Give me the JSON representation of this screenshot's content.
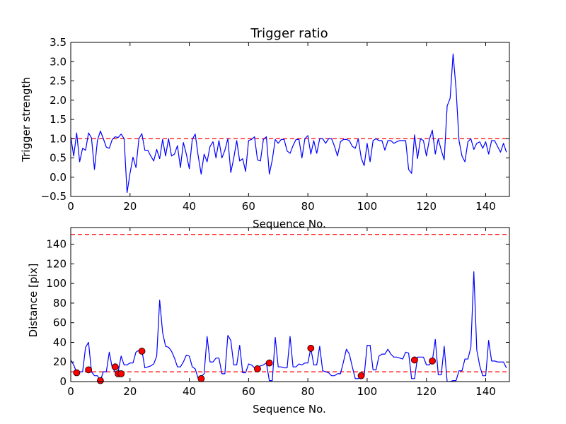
{
  "chart_data": [
    {
      "type": "line",
      "title": "Trigger ratio",
      "xlabel": "Sequence No.",
      "ylabel": "Trigger strength",
      "xlim": [
        0,
        148
      ],
      "ylim": [
        -0.5,
        3.5
      ],
      "xticks": [
        0,
        20,
        40,
        60,
        80,
        100,
        120,
        140
      ],
      "yticks": [
        -0.5,
        0.0,
        0.5,
        1.0,
        1.5,
        2.0,
        2.5,
        3.0,
        3.5
      ],
      "ytick_labels": [
        "−0.5",
        "0.0",
        "0.5",
        "1.0",
        "1.5",
        "2.0",
        "2.5",
        "3.0",
        "3.5"
      ],
      "grid": false,
      "series": [
        {
          "color": "#0000ff",
          "values": [
            1.05,
            0.55,
            1.15,
            0.4,
            0.75,
            0.7,
            1.15,
            1.02,
            0.2,
            0.95,
            1.2,
            1.0,
            0.78,
            0.75,
            0.98,
            1.05,
            1.03,
            1.12,
            1.0,
            -0.4,
            0.1,
            0.52,
            0.25,
            1.0,
            1.13,
            0.7,
            0.7,
            0.55,
            0.42,
            0.72,
            0.48,
            0.98,
            0.55,
            1.0,
            0.55,
            0.6,
            0.82,
            0.25,
            0.9,
            0.6,
            0.22,
            0.98,
            1.12,
            0.55,
            0.08,
            0.6,
            0.4,
            0.8,
            0.92,
            0.5,
            0.95,
            0.5,
            0.7,
            1.0,
            0.12,
            0.5,
            0.95,
            0.42,
            0.48,
            0.15,
            0.95,
            0.98,
            1.05,
            0.45,
            0.42,
            0.98,
            1.05,
            0.08,
            0.45,
            0.98,
            0.88,
            0.98,
            0.98,
            0.68,
            0.62,
            0.82,
            0.98,
            0.98,
            0.5,
            1.0,
            1.08,
            0.6,
            0.95,
            0.62,
            1.0,
            1.0,
            0.88,
            1.0,
            1.0,
            0.8,
            0.55,
            0.92,
            0.98,
            0.98,
            0.95,
            0.8,
            0.75,
            1.0,
            0.5,
            0.3,
            0.88,
            0.4,
            0.95,
            1.0,
            0.95,
            0.95,
            0.7,
            0.95,
            0.95,
            0.88,
            0.92,
            0.95,
            0.95,
            0.95,
            0.2,
            0.1,
            1.1,
            0.48,
            1.0,
            0.95,
            0.55,
            0.98,
            1.22,
            0.6,
            1.0,
            0.7,
            0.45,
            1.85,
            2.05,
            3.2,
            2.3,
            0.95,
            0.55,
            0.4,
            0.92,
            1.0,
            0.72,
            0.88,
            0.92,
            0.75,
            0.92,
            0.6,
            0.95,
            0.95,
            0.8,
            0.65,
            0.88,
            0.65
          ]
        }
      ],
      "threshold_lines": [
        {
          "y": 1.0,
          "color": "#ff0000",
          "style": "dashed"
        }
      ]
    },
    {
      "type": "line",
      "xlabel": "Sequence No.",
      "ylabel": "Distance [pix]",
      "xlim": [
        0,
        148
      ],
      "ylim": [
        0,
        157
      ],
      "xticks": [
        0,
        20,
        40,
        60,
        80,
        100,
        120,
        140
      ],
      "yticks": [
        0,
        20,
        40,
        60,
        80,
        100,
        120,
        140
      ],
      "grid": false,
      "series": [
        {
          "color": "#0000ff",
          "values": [
            22,
            17,
            9,
            10,
            10,
            35,
            40,
            10,
            6,
            6,
            1,
            10,
            10,
            30,
            14,
            10,
            10,
            26,
            17,
            17,
            19,
            19,
            30,
            32,
            32,
            14,
            15,
            16,
            18,
            26,
            83,
            50,
            36,
            35,
            31,
            24,
            15,
            15,
            20,
            27,
            26,
            15,
            13,
            3,
            5,
            8,
            46,
            20,
            20,
            24,
            24,
            8,
            8,
            47,
            42,
            17,
            17,
            37,
            9,
            9,
            18,
            17,
            14,
            14,
            16,
            17,
            19,
            1,
            1,
            45,
            15,
            15,
            14,
            14,
            46,
            15,
            15,
            18,
            17,
            19,
            19,
            34,
            17,
            17,
            36,
            11,
            10,
            9,
            6,
            6,
            8,
            8,
            20,
            33,
            28,
            15,
            3,
            3,
            6,
            6,
            37,
            37,
            12,
            12,
            26,
            28,
            28,
            33,
            28,
            25,
            25,
            24,
            23,
            30,
            29,
            3,
            3,
            25,
            25,
            25,
            17,
            17,
            21,
            43,
            7,
            7,
            36,
            0,
            0,
            1,
            1,
            11,
            11,
            23,
            23,
            35,
            112,
            32,
            16,
            6,
            6,
            42,
            21,
            21,
            20,
            20,
            20,
            14
          ]
        }
      ],
      "markers": [
        {
          "x": 2,
          "y": 9
        },
        {
          "x": 6,
          "y": 12
        },
        {
          "x": 10,
          "y": 1
        },
        {
          "x": 15,
          "y": 15
        },
        {
          "x": 16,
          "y": 8
        },
        {
          "x": 17,
          "y": 8
        },
        {
          "x": 24,
          "y": 31
        },
        {
          "x": 44,
          "y": 3
        },
        {
          "x": 63,
          "y": 13
        },
        {
          "x": 67,
          "y": 19
        },
        {
          "x": 81,
          "y": 34
        },
        {
          "x": 98,
          "y": 6
        },
        {
          "x": 116,
          "y": 22
        },
        {
          "x": 122,
          "y": 21
        }
      ],
      "marker_color": "#ff0000",
      "threshold_lines": [
        {
          "y": 10,
          "color": "#ff0000",
          "style": "dashed"
        },
        {
          "y": 150,
          "color": "#ff0000",
          "style": "dashed"
        }
      ]
    }
  ]
}
